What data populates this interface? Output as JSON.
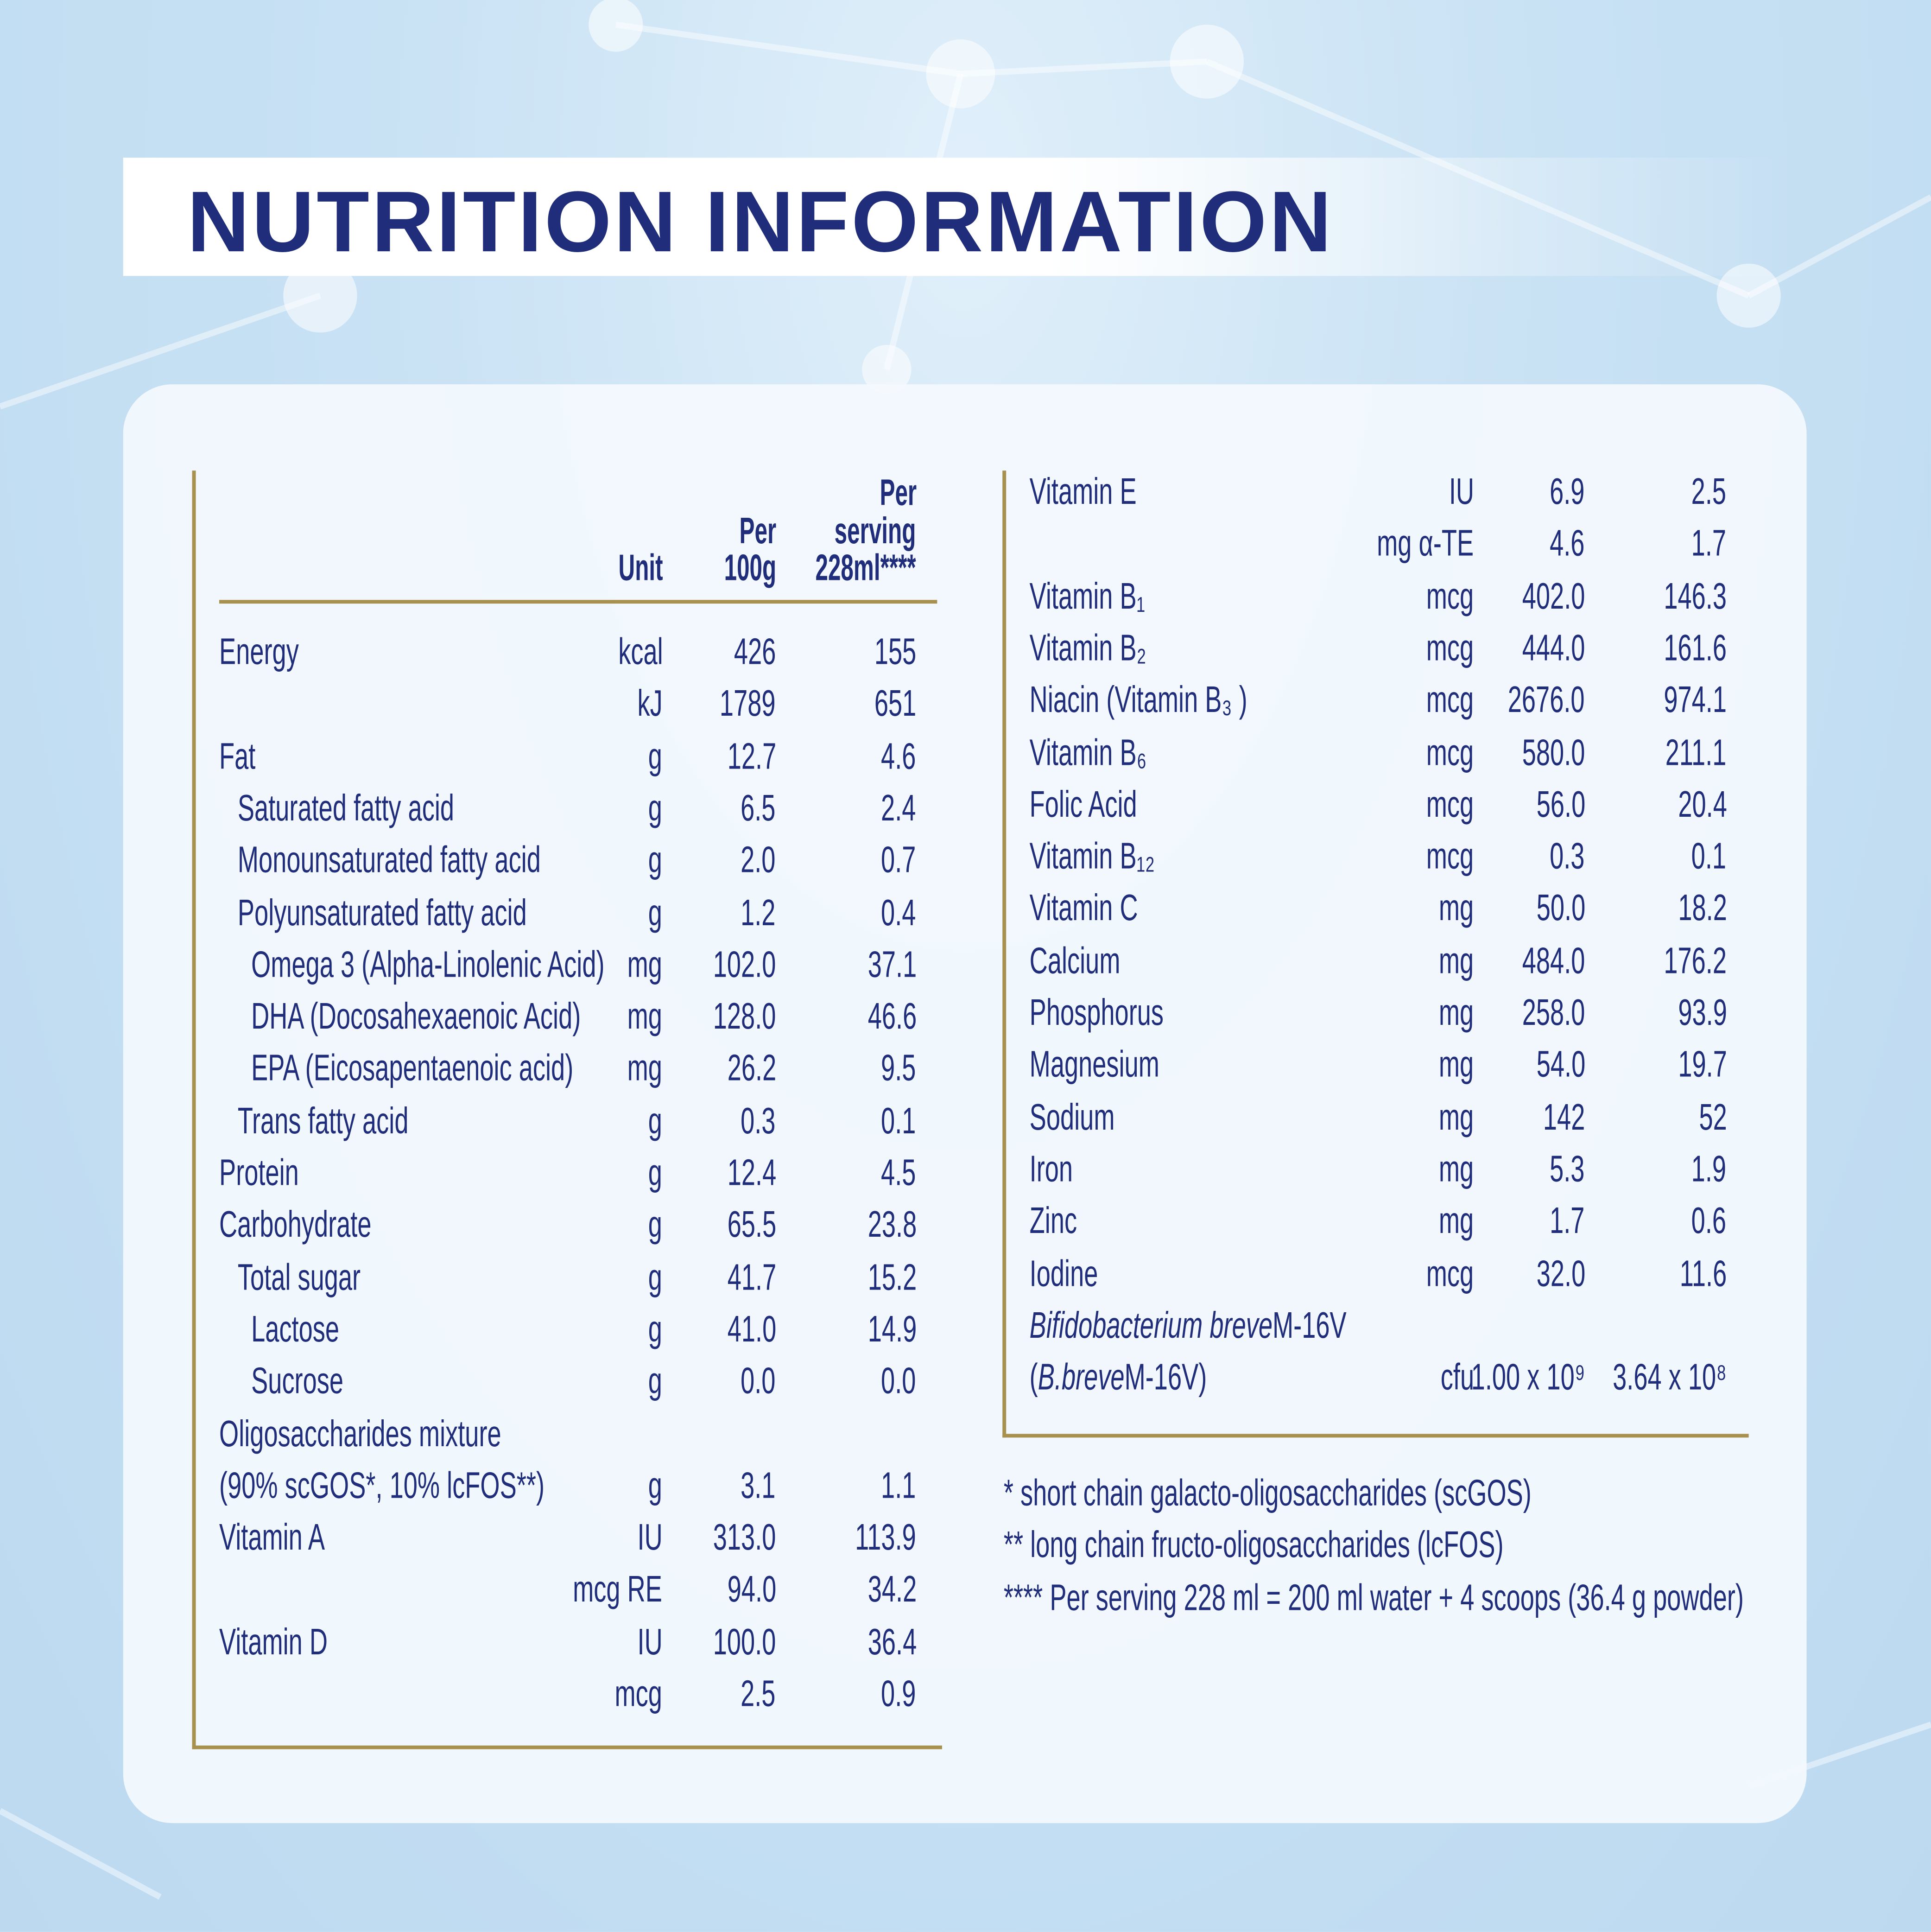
{
  "title": "NUTRITION INFORMATION",
  "colors": {
    "navy": "#1f2d7a",
    "gold": "#a8914f",
    "background": "#c4def2"
  },
  "left_table": {
    "headers": {
      "unit": "Unit",
      "per100_line1": "Per",
      "per100_line2": "100g",
      "serving_line1": "Per",
      "serving_line2": "serving",
      "serving_line3": "228ml****"
    },
    "rows": [
      {
        "name": "Energy",
        "indent": 0,
        "unit": "kcal",
        "per100": "426",
        "serving": "155"
      },
      {
        "name": "",
        "indent": 0,
        "unit": "kJ",
        "per100": "1789",
        "serving": "651"
      },
      {
        "name": "Fat",
        "indent": 0,
        "unit": "g",
        "per100": "12.7",
        "serving": "4.6"
      },
      {
        "name": "Saturated fatty acid",
        "indent": 1,
        "unit": "g",
        "per100": "6.5",
        "serving": "2.4"
      },
      {
        "name": "Monounsaturated fatty acid",
        "indent": 1,
        "unit": "g",
        "per100": "2.0",
        "serving": "0.7"
      },
      {
        "name": "Polyunsaturated fatty acid",
        "indent": 1,
        "unit": "g",
        "per100": "1.2",
        "serving": "0.4"
      },
      {
        "name": "Omega 3 (Alpha-Linolenic Acid)",
        "indent": 2,
        "unit": "mg",
        "per100": "102.0",
        "serving": "37.1"
      },
      {
        "name": "DHA (Docosahexaenoic Acid)",
        "indent": 2,
        "unit": "mg",
        "per100": "128.0",
        "serving": "46.6"
      },
      {
        "name": "EPA (Eicosapentaenoic acid)",
        "indent": 2,
        "unit": "mg",
        "per100": "26.2",
        "serving": "9.5"
      },
      {
        "name": "Trans fatty acid",
        "indent": 1,
        "unit": "g",
        "per100": "0.3",
        "serving": "0.1"
      },
      {
        "name": "Protein",
        "indent": 0,
        "unit": "g",
        "per100": "12.4",
        "serving": "4.5"
      },
      {
        "name": "Carbohydrate",
        "indent": 0,
        "unit": "g",
        "per100": "65.5",
        "serving": "23.8"
      },
      {
        "name": "Total sugar",
        "indent": 1,
        "unit": "g",
        "per100": "41.7",
        "serving": "15.2"
      },
      {
        "name": "Lactose",
        "indent": 2,
        "unit": "g",
        "per100": "41.0",
        "serving": "14.9"
      },
      {
        "name": "Sucrose",
        "indent": 2,
        "unit": "g",
        "per100": "0.0",
        "serving": "0.0"
      },
      {
        "name": "Oligosaccharides mixture",
        "indent": 0,
        "unit": "",
        "per100": "",
        "serving": ""
      },
      {
        "name": "(90% scGOS*, 10% lcFOS**)",
        "indent": 0,
        "unit": "g",
        "per100": "3.1",
        "serving": "1.1"
      },
      {
        "name": "Vitamin A",
        "indent": 0,
        "unit": "IU",
        "per100": "313.0",
        "serving": "113.9"
      },
      {
        "name": "",
        "indent": 0,
        "unit": "mcg RE",
        "per100": "94.0",
        "serving": "34.2"
      },
      {
        "name": "Vitamin D",
        "indent": 0,
        "unit": "IU",
        "per100": "100.0",
        "serving": "36.4"
      },
      {
        "name": "",
        "indent": 0,
        "unit": "mcg",
        "per100": "2.5",
        "serving": "0.9"
      }
    ]
  },
  "right_table": {
    "rows": [
      {
        "name": "Vitamin E",
        "unit": "IU",
        "per100": "6.9",
        "serving": "2.5"
      },
      {
        "name": "",
        "unit": "mg α-TE",
        "per100": "4.6",
        "serving": "1.7"
      },
      {
        "name": "Vitamin B₁",
        "unit": "mcg",
        "per100": "402.0",
        "serving": "146.3"
      },
      {
        "name": "Vitamin B₂",
        "unit": "mcg",
        "per100": "444.0",
        "serving": "161.6"
      },
      {
        "name": "Niacin (Vitamin B₃ )",
        "unit": "mcg",
        "per100": "2676.0",
        "serving": "974.1"
      },
      {
        "name": "Vitamin B₆",
        "unit": "mcg",
        "per100": "580.0",
        "serving": "211.1"
      },
      {
        "name": "Folic Acid",
        "unit": "mcg",
        "per100": "56.0",
        "serving": "20.4"
      },
      {
        "name": "Vitamin B₁₂",
        "unit": "mcg",
        "per100": "0.3",
        "serving": "0.1"
      },
      {
        "name": "Vitamin C",
        "unit": "mg",
        "per100": "50.0",
        "serving": "18.2"
      },
      {
        "name": "Calcium",
        "unit": "mg",
        "per100": "484.0",
        "serving": "176.2"
      },
      {
        "name": "Phosphorus",
        "unit": "mg",
        "per100": "258.0",
        "serving": "93.9"
      },
      {
        "name": "Magnesium",
        "unit": "mg",
        "per100": "54.0",
        "serving": "19.7"
      },
      {
        "name": "Sodium",
        "unit": "mg",
        "per100": "142",
        "serving": "52"
      },
      {
        "name": "Iron",
        "unit": "mg",
        "per100": "5.3",
        "serving": "1.9"
      },
      {
        "name": "Zinc",
        "unit": "mg",
        "per100": "1.7",
        "serving": "0.6"
      },
      {
        "name": "Iodine",
        "unit": "mcg",
        "per100": "32.0",
        "serving": "11.6"
      },
      {
        "name_parts": [
          {
            "text": "Bifidobacterium breve",
            "italic": true
          },
          {
            "text": " M-16V",
            "italic": false
          }
        ],
        "unit": "",
        "per100": "",
        "serving": ""
      },
      {
        "name_parts": [
          {
            "text": "(",
            "italic": false
          },
          {
            "text": "B.breve",
            "italic": true
          },
          {
            "text": " M-16V)",
            "italic": false
          }
        ],
        "unit": "cfu",
        "per100": "1.00 x 10⁹",
        "serving": "3.64 x 10⁸"
      }
    ]
  },
  "footnotes": [
    "* short chain galacto-oligosaccharides (scGOS)",
    "** long chain fructo-oligosaccharides (lcFOS)",
    "**** Per serving 228 ml = 200 ml water + 4 scoops (36.4 g powder)"
  ]
}
